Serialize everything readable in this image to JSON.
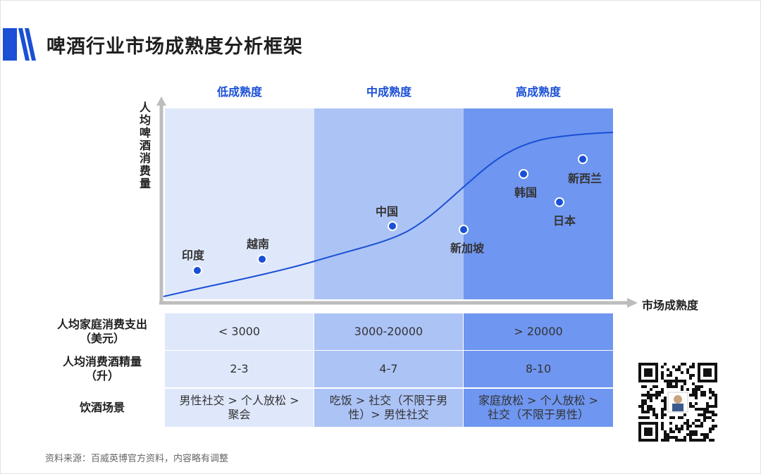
{
  "title": "啤酒行业市场成熟度分析框架",
  "stages": [
    {
      "label": "低成熟度",
      "color": "#dfe8fb"
    },
    {
      "label": "中成熟度",
      "color": "#acc3f6"
    },
    {
      "label": "高成熟度",
      "color": "#6f96f0"
    }
  ],
  "y_axis_label": "人均啤酒消费量",
  "x_axis_label": "市场成熟度",
  "curve_color": "#1a4fd6",
  "chart_data": {
    "type": "scatter",
    "points": [
      {
        "label": "印度"
      },
      {
        "label": "越南"
      },
      {
        "label": "中国"
      },
      {
        "label": "新加坡"
      },
      {
        "label": "韩国"
      },
      {
        "label": "日本"
      },
      {
        "label": "新西兰"
      }
    ]
  },
  "table": {
    "rows": [
      {
        "label": "人均家庭消费支出\n（美元）",
        "cells": [
          "< 3000",
          "3000-20000",
          "> 20000"
        ]
      },
      {
        "label": "人均消费酒精量\n（升）",
        "cells": [
          "2-3",
          "4-7",
          "8-10"
        ]
      },
      {
        "label": "饮酒场景",
        "cells": [
          "男性社交 > 个人放松 >\n聚会",
          "吃饭 > 社交（不限于男\n性）> 男性社交",
          "家庭放松 > 个人放松 >\n社交（不限于男性）"
        ]
      }
    ]
  },
  "source": "资料来源：百威英博官方资料，内容略有调整"
}
